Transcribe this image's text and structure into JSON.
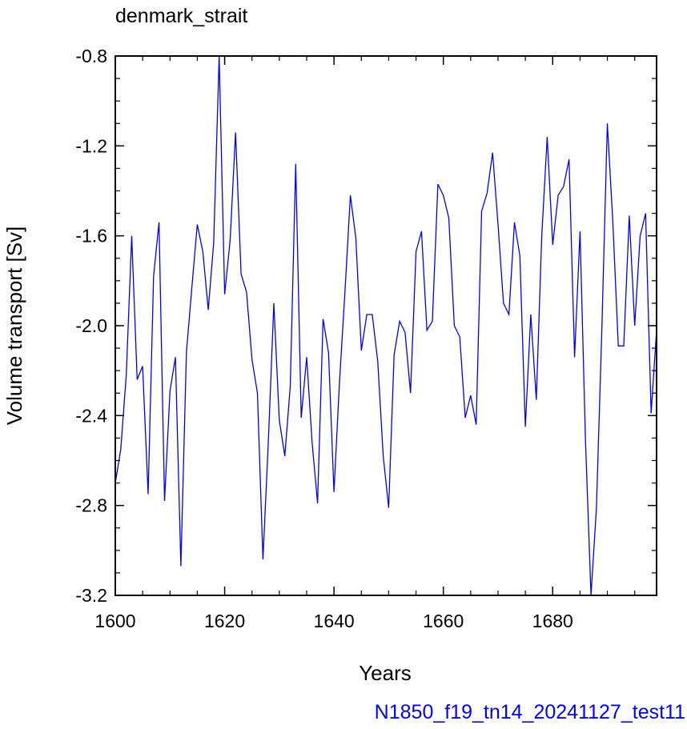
{
  "colors": {
    "line": "#0000ff",
    "frame": "#000000",
    "footer": "#0000ff"
  },
  "chart_data": {
    "type": "line",
    "title": "denmark_strait",
    "xlabel": "Years",
    "ylabel": "Volume transport [Sv]",
    "footer": "N1850_f19_tn14_20241127_test11",
    "xlim": [
      1600,
      1699
    ],
    "ylim": [
      -3.2,
      -0.8
    ],
    "xticks": [
      1600,
      1620,
      1640,
      1660,
      1680
    ],
    "xtick_labels": [
      "1600",
      "1620",
      "1640",
      "1660",
      "1680"
    ],
    "yticks": [
      -0.8,
      -1.2,
      -1.6,
      -2.0,
      -2.4,
      -2.8,
      -3.2
    ],
    "ytick_labels": [
      "-0.8",
      "-1.2",
      "-1.6",
      "-2.0",
      "-2.4",
      "-2.8",
      "-3.2"
    ],
    "grid": false,
    "series": [
      {
        "x": [
          1600,
          1601,
          1602,
          1603,
          1604,
          1605,
          1606,
          1607,
          1608,
          1609,
          1610,
          1611,
          1612,
          1613,
          1614,
          1615,
          1616,
          1617,
          1618,
          1619,
          1620,
          1621,
          1622,
          1623,
          1624,
          1625,
          1626,
          1627,
          1628,
          1629,
          1630,
          1631,
          1632,
          1633,
          1634,
          1635,
          1636,
          1637,
          1638,
          1639,
          1640,
          1641,
          1642,
          1643,
          1644,
          1645,
          1646,
          1647,
          1648,
          1649,
          1650,
          1651,
          1652,
          1653,
          1654,
          1655,
          1656,
          1657,
          1658,
          1659,
          1660,
          1661,
          1662,
          1663,
          1664,
          1665,
          1666,
          1667,
          1668,
          1669,
          1670,
          1671,
          1672,
          1673,
          1674,
          1675,
          1676,
          1677,
          1678,
          1679,
          1680,
          1681,
          1682,
          1683,
          1684,
          1685,
          1686,
          1687,
          1688,
          1689,
          1690,
          1691,
          1692,
          1693,
          1694,
          1695,
          1696,
          1697,
          1698,
          1699
        ],
        "values": [
          -2.7,
          -2.55,
          -2.22,
          -1.6,
          -2.24,
          -2.18,
          -2.75,
          -1.78,
          -1.54,
          -2.78,
          -2.29,
          -2.14,
          -3.07,
          -2.12,
          -1.83,
          -1.55,
          -1.67,
          -1.93,
          -1.63,
          -0.8,
          -1.86,
          -1.62,
          -1.14,
          -1.77,
          -1.85,
          -2.15,
          -2.3,
          -3.04,
          -2.51,
          -1.9,
          -2.42,
          -2.58,
          -2.27,
          -1.28,
          -2.41,
          -2.14,
          -2.52,
          -2.79,
          -1.97,
          -2.12,
          -2.74,
          -2.25,
          -1.85,
          -1.42,
          -1.61,
          -2.11,
          -1.95,
          -1.95,
          -2.16,
          -2.58,
          -2.81,
          -2.13,
          -1.98,
          -2.03,
          -2.3,
          -1.67,
          -1.58,
          -2.02,
          -1.98,
          -1.37,
          -1.42,
          -1.52,
          -2.0,
          -2.05,
          -2.41,
          -2.31,
          -2.44,
          -1.49,
          -1.41,
          -1.23,
          -1.55,
          -1.9,
          -1.95,
          -1.54,
          -1.69,
          -2.45,
          -1.95,
          -2.33,
          -1.6,
          -1.16,
          -1.64,
          -1.42,
          -1.38,
          -1.26,
          -2.14,
          -1.58,
          -2.51,
          -3.2,
          -2.81,
          -2.01,
          -1.1,
          -1.54,
          -2.09,
          -2.09,
          -1.51,
          -2.0,
          -1.6,
          -1.5,
          -2.39,
          -2.02
        ]
      }
    ]
  }
}
